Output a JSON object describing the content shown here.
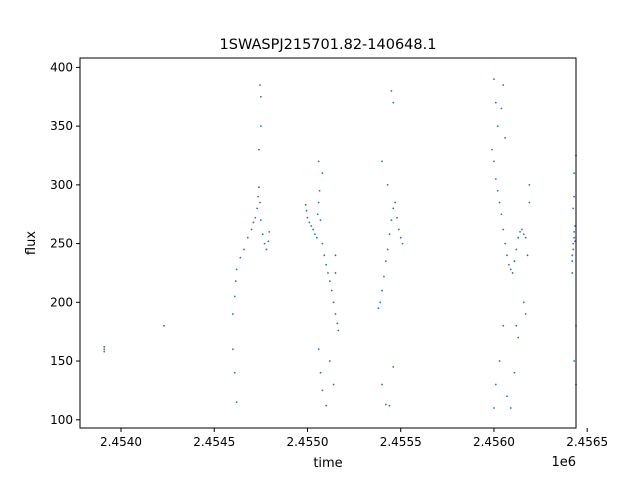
{
  "chart_data": {
    "type": "scatter",
    "title": "1SWASPJ215701.82-140648.1",
    "xlabel": "time",
    "ylabel": "flux",
    "x_offset_label": "1e6",
    "xlim": [
      2453780,
      2456440
    ],
    "ylim": [
      93,
      408
    ],
    "xticks": [
      2454000,
      2454500,
      2455000,
      2455500,
      2456000,
      2456500
    ],
    "xtick_labels": [
      "2.4540",
      "2.4545",
      "2.4550",
      "2.4555",
      "2.4560",
      "2.4565"
    ],
    "yticks": [
      100,
      150,
      200,
      250,
      300,
      350,
      400
    ],
    "ytick_labels": [
      "100",
      "150",
      "200",
      "250",
      "300",
      "350",
      "400"
    ],
    "grid": false,
    "marker_color": "#1f77b4",
    "series": [
      {
        "name": "",
        "points": [
          [
            2453910,
            158
          ],
          [
            2453910,
            160
          ],
          [
            2453910,
            162
          ],
          [
            2454230,
            180
          ],
          [
            2454600,
            190
          ],
          [
            2454610,
            205
          ],
          [
            2454615,
            218
          ],
          [
            2454620,
            228
          ],
          [
            2454640,
            238
          ],
          [
            2454660,
            245
          ],
          [
            2454680,
            255
          ],
          [
            2454700,
            262
          ],
          [
            2454710,
            268
          ],
          [
            2454720,
            272
          ],
          [
            2454730,
            280
          ],
          [
            2454735,
            290
          ],
          [
            2454740,
            298
          ],
          [
            2454745,
            285
          ],
          [
            2454750,
            270
          ],
          [
            2454760,
            258
          ],
          [
            2454770,
            250
          ],
          [
            2454780,
            245
          ],
          [
            2454790,
            252
          ],
          [
            2454795,
            260
          ],
          [
            2454740,
            330
          ],
          [
            2454750,
            350
          ],
          [
            2454750,
            375
          ],
          [
            2454745,
            385
          ],
          [
            2454600,
            160
          ],
          [
            2454610,
            140
          ],
          [
            2454620,
            115
          ],
          [
            2454990,
            283
          ],
          [
            2454995,
            278
          ],
          [
            2455000,
            272
          ],
          [
            2455010,
            268
          ],
          [
            2455020,
            265
          ],
          [
            2455030,
            262
          ],
          [
            2455040,
            258
          ],
          [
            2455050,
            255
          ],
          [
            2455055,
            275
          ],
          [
            2455060,
            285
          ],
          [
            2455065,
            295
          ],
          [
            2455070,
            270
          ],
          [
            2455080,
            250
          ],
          [
            2455090,
            240
          ],
          [
            2455100,
            232
          ],
          [
            2455110,
            225
          ],
          [
            2455120,
            218
          ],
          [
            2455130,
            210
          ],
          [
            2455140,
            200
          ],
          [
            2455150,
            190
          ],
          [
            2455160,
            182
          ],
          [
            2455165,
            176
          ],
          [
            2455060,
            160
          ],
          [
            2455070,
            140
          ],
          [
            2455080,
            125
          ],
          [
            2455100,
            112
          ],
          [
            2455120,
            150
          ],
          [
            2455140,
            130
          ],
          [
            2455060,
            320
          ],
          [
            2455080,
            310
          ],
          [
            2455150,
            240
          ],
          [
            2455150,
            225
          ],
          [
            2455380,
            195
          ],
          [
            2455390,
            200
          ],
          [
            2455400,
            210
          ],
          [
            2455410,
            222
          ],
          [
            2455420,
            235
          ],
          [
            2455430,
            245
          ],
          [
            2455440,
            258
          ],
          [
            2455450,
            270
          ],
          [
            2455460,
            280
          ],
          [
            2455470,
            285
          ],
          [
            2455480,
            272
          ],
          [
            2455490,
            262
          ],
          [
            2455500,
            255
          ],
          [
            2455510,
            250
          ],
          [
            2455400,
            320
          ],
          [
            2455430,
            300
          ],
          [
            2455450,
            380
          ],
          [
            2455460,
            370
          ],
          [
            2455400,
            130
          ],
          [
            2455420,
            113
          ],
          [
            2455440,
            112
          ],
          [
            2455460,
            145
          ],
          [
            2455990,
            330
          ],
          [
            2456000,
            320
          ],
          [
            2456010,
            305
          ],
          [
            2456020,
            295
          ],
          [
            2456030,
            285
          ],
          [
            2456040,
            275
          ],
          [
            2456050,
            262
          ],
          [
            2456060,
            250
          ],
          [
            2456070,
            240
          ],
          [
            2456080,
            232
          ],
          [
            2456090,
            228
          ],
          [
            2456100,
            225
          ],
          [
            2456110,
            235
          ],
          [
            2456120,
            245
          ],
          [
            2456130,
            255
          ],
          [
            2456140,
            260
          ],
          [
            2456150,
            262
          ],
          [
            2456160,
            258
          ],
          [
            2456170,
            255
          ],
          [
            2456000,
            390
          ],
          [
            2456010,
            370
          ],
          [
            2456020,
            350
          ],
          [
            2456040,
            365
          ],
          [
            2456050,
            385
          ],
          [
            2456060,
            340
          ],
          [
            2456000,
            110
          ],
          [
            2456010,
            130
          ],
          [
            2456030,
            150
          ],
          [
            2456050,
            180
          ],
          [
            2456070,
            120
          ],
          [
            2456090,
            110
          ],
          [
            2456110,
            140
          ],
          [
            2456120,
            180
          ],
          [
            2456130,
            170
          ],
          [
            2456160,
            200
          ],
          [
            2456170,
            190
          ],
          [
            2456180,
            240
          ],
          [
            2456190,
            285
          ],
          [
            2456190,
            300
          ],
          [
            2456420,
            235
          ],
          [
            2456420,
            240
          ],
          [
            2456425,
            245
          ],
          [
            2456425,
            250
          ],
          [
            2456430,
            255
          ],
          [
            2456430,
            260
          ],
          [
            2456435,
            265
          ],
          [
            2456435,
            252
          ],
          [
            2456420,
            225
          ],
          [
            2456425,
            280
          ],
          [
            2456430,
            290
          ],
          [
            2456430,
            310
          ],
          [
            2456440,
            325
          ],
          [
            2456440,
            180
          ],
          [
            2456430,
            150
          ],
          [
            2456440,
            130
          ]
        ]
      }
    ]
  }
}
